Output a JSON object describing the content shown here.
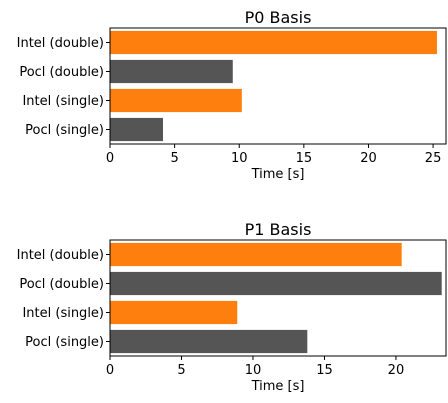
{
  "colors": {
    "orange": "#ff7f0e",
    "gray": "#555555"
  },
  "chart_data": [
    {
      "type": "bar",
      "orientation": "horizontal",
      "title": "P0 Basis",
      "xlabel": "Time [s]",
      "xlim": [
        0,
        26
      ],
      "xticks": [
        0,
        5,
        10,
        15,
        20,
        25
      ],
      "categories": [
        "Intel (double)",
        "Pocl (double)",
        "Intel (single)",
        "Pocl (single)"
      ],
      "values": [
        25.3,
        9.5,
        10.2,
        4.1
      ],
      "colors": [
        "#ff7f0e",
        "#555555",
        "#ff7f0e",
        "#555555"
      ]
    },
    {
      "type": "bar",
      "orientation": "horizontal",
      "title": "P1 Basis",
      "xlabel": "Time [s]",
      "xlim": [
        0,
        23.5
      ],
      "xticks": [
        0,
        5,
        10,
        15,
        20
      ],
      "categories": [
        "Intel (double)",
        "Pocl (double)",
        "Intel (single)",
        "Pocl (single)"
      ],
      "values": [
        20.4,
        23.2,
        8.9,
        13.8
      ],
      "colors": [
        "#ff7f0e",
        "#555555",
        "#ff7f0e",
        "#555555"
      ]
    }
  ]
}
